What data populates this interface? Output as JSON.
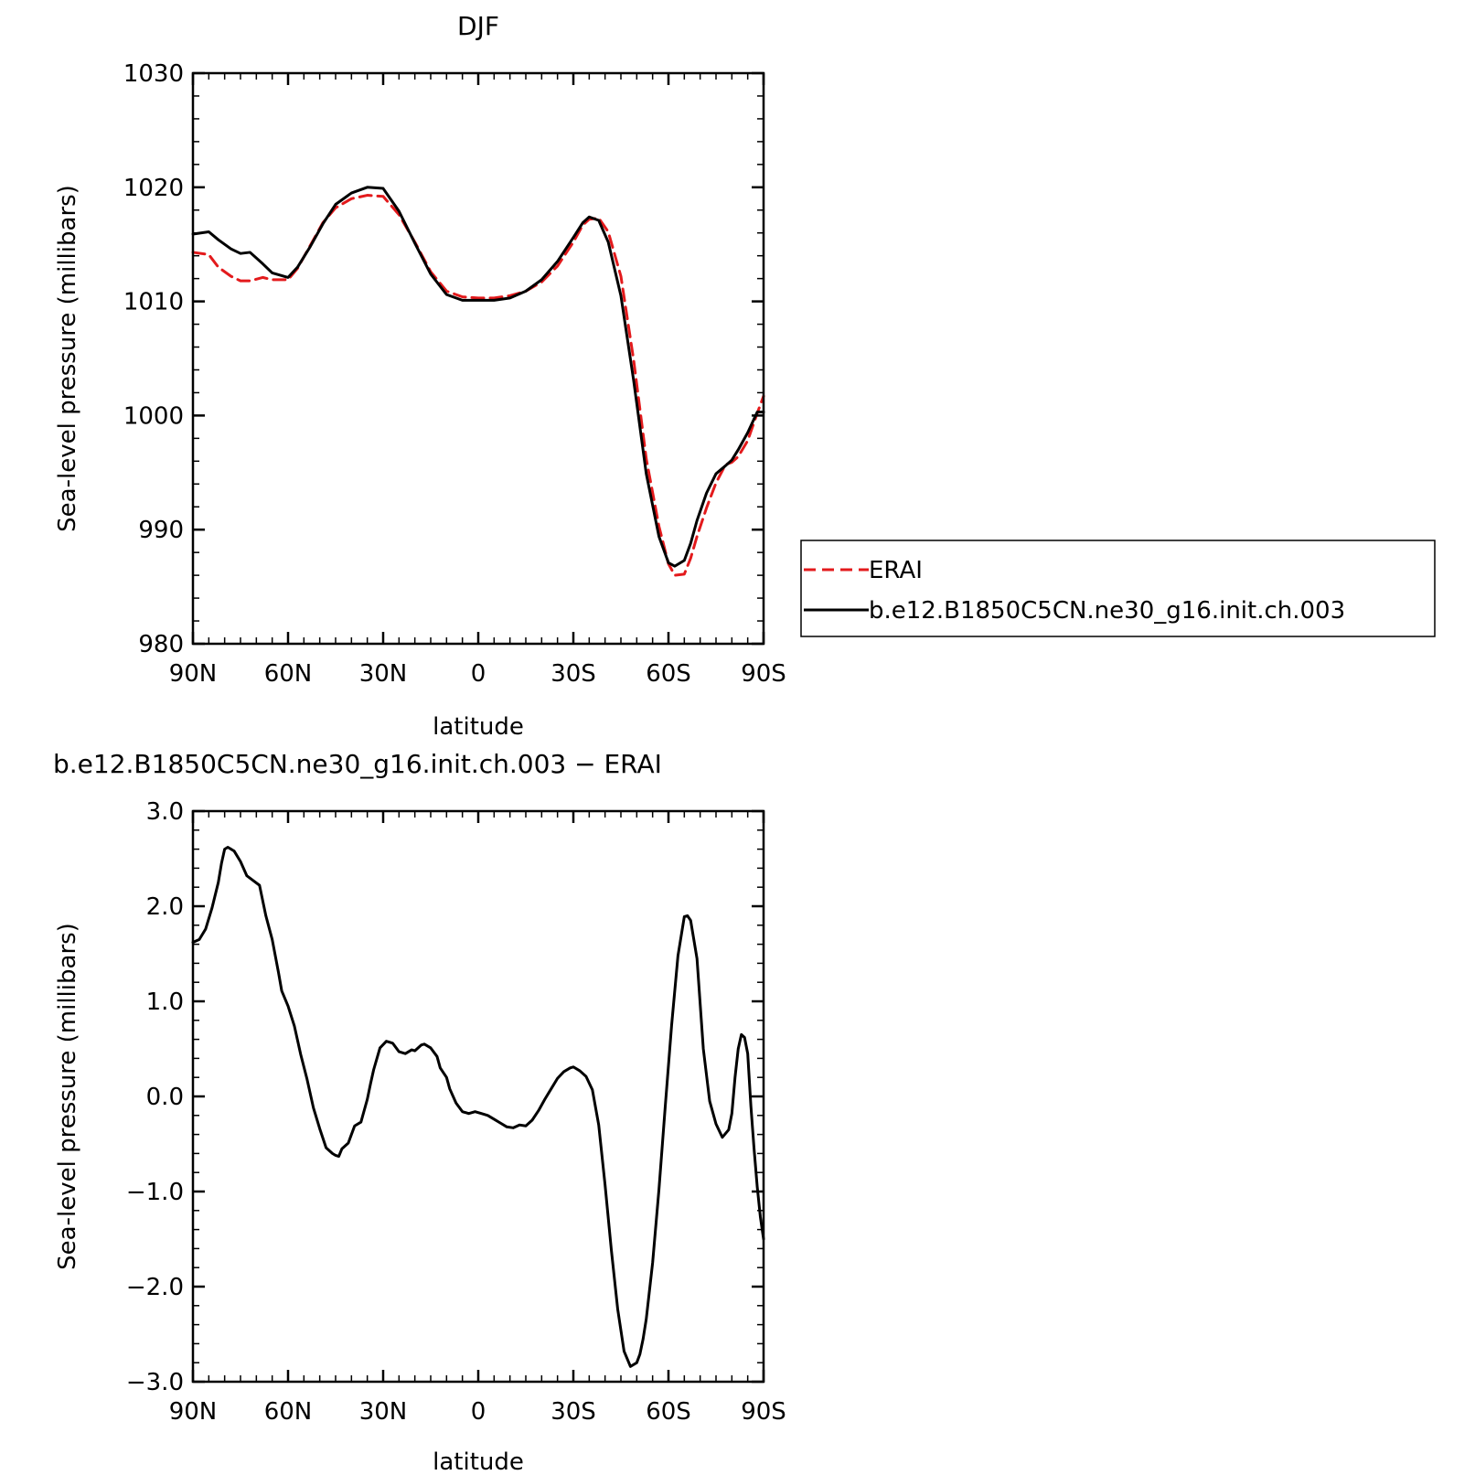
{
  "chart_data": [
    {
      "type": "line",
      "title": "DJF",
      "xlabel": "latitude",
      "ylabel": "Sea-level pressure (millibars)",
      "xlim": [
        90,
        -90
      ],
      "ylim": [
        980,
        1030
      ],
      "xticks": [
        90,
        60,
        30,
        0,
        -30,
        -60,
        -90
      ],
      "xtick_labels": [
        "90N",
        "60N",
        "30N",
        "0",
        "30S",
        "60S",
        "90S"
      ],
      "yticks": [
        980,
        990,
        1000,
        1010,
        1020,
        1030
      ],
      "ytick_labels": [
        "980",
        "990",
        "1000",
        "1010",
        "1020",
        "1030"
      ],
      "legend": "right",
      "series": [
        {
          "name": "ERAI",
          "color": "#e31a1c",
          "dash": true,
          "x": [
            90,
            85,
            82,
            78,
            75,
            72,
            68,
            65,
            60,
            57,
            53,
            49,
            45,
            40,
            35,
            30,
            25,
            20,
            15,
            10,
            5,
            0,
            -5,
            -10,
            -15,
            -20,
            -25,
            -30,
            -33,
            -35,
            -38,
            -41,
            -45,
            -49,
            -53,
            -57,
            -60,
            -62,
            -65,
            -67,
            -69,
            -72,
            -75,
            -78,
            -80,
            -82,
            -85,
            -88,
            -90
          ],
          "y": [
            1014.3,
            1014.1,
            1013.0,
            1012.2,
            1011.8,
            1011.8,
            1012.1,
            1011.9,
            1011.9,
            1012.9,
            1014.9,
            1016.9,
            1018.2,
            1019.0,
            1019.3,
            1019.2,
            1017.6,
            1015.2,
            1012.6,
            1010.9,
            1010.4,
            1010.3,
            1010.3,
            1010.5,
            1010.9,
            1011.7,
            1013.1,
            1015.2,
            1016.7,
            1017.2,
            1017.3,
            1016.1,
            1012.2,
            1004.9,
            996.2,
            990.3,
            987.0,
            986.0,
            986.1,
            987.5,
            989.4,
            991.9,
            994.1,
            995.7,
            995.9,
            996.4,
            997.8,
            1000.2,
            1001.7
          ]
        },
        {
          "name": "b.e12.B1850C5CN.ne30_g16.init.ch.003",
          "color": "#000000",
          "dash": false,
          "x": [
            90,
            85,
            82,
            78,
            75,
            72,
            68,
            65,
            60,
            57,
            53,
            49,
            45,
            40,
            35,
            30,
            25,
            20,
            15,
            10,
            5,
            0,
            -5,
            -10,
            -15,
            -20,
            -25,
            -30,
            -33,
            -35,
            -38,
            -41,
            -45,
            -49,
            -53,
            -57,
            -60,
            -62,
            -65,
            -67,
            -69,
            -72,
            -75,
            -78,
            -80,
            -82,
            -85,
            -88,
            -90
          ],
          "y": [
            1015.9,
            1016.1,
            1015.4,
            1014.6,
            1014.2,
            1014.3,
            1013.3,
            1012.5,
            1012.1,
            1013.0,
            1014.8,
            1016.8,
            1018.5,
            1019.5,
            1020.0,
            1019.9,
            1017.9,
            1015.1,
            1012.4,
            1010.6,
            1010.1,
            1010.1,
            1010.1,
            1010.3,
            1010.9,
            1011.9,
            1013.5,
            1015.6,
            1016.9,
            1017.4,
            1017.1,
            1015.2,
            1010.5,
            1003.1,
            994.9,
            989.4,
            987.1,
            986.8,
            987.3,
            988.8,
            990.8,
            993.2,
            994.9,
            995.6,
            996.1,
            997.0,
            998.5,
            1000.3,
            1000.3
          ]
        }
      ]
    },
    {
      "type": "line",
      "title": "b.e12.B1850C5CN.ne30_g16.init.ch.003 − ERAI",
      "xlabel": "latitude",
      "ylabel": "Sea-level pressure (millibars)",
      "xlim": [
        90,
        -90
      ],
      "ylim": [
        -3.0,
        3.0
      ],
      "xticks": [
        90,
        60,
        30,
        0,
        -30,
        -60,
        -90
      ],
      "xtick_labels": [
        "90N",
        "60N",
        "30N",
        "0",
        "30S",
        "60S",
        "90S"
      ],
      "yticks": [
        -3.0,
        -2.0,
        -1.0,
        0.0,
        1.0,
        2.0,
        3.0
      ],
      "ytick_labels": [
        "−3.0",
        "−2.0",
        "−1.0",
        "0.0",
        "1.0",
        "2.0",
        "3.0"
      ],
      "series": [
        {
          "color": "#000000",
          "dash": false,
          "x": [
            90,
            88,
            86,
            84,
            82,
            81,
            80,
            79,
            77,
            75,
            73,
            71,
            69,
            67,
            65,
            63,
            62,
            60,
            58,
            56,
            54,
            52,
            50,
            48,
            46,
            45,
            44,
            43,
            42,
            41,
            39,
            37,
            35,
            34,
            33,
            31,
            29,
            28,
            27,
            25,
            23,
            21,
            20,
            18,
            17,
            15,
            13,
            12,
            10,
            9,
            7,
            5,
            3,
            1,
            -1,
            -3,
            -5,
            -7,
            -9,
            -11,
            -13,
            -15,
            -17,
            -19,
            -21,
            -23,
            -25,
            -27,
            -29,
            -30,
            -32,
            -34,
            -36,
            -38,
            -40,
            -42,
            -44,
            -46,
            -48,
            -50,
            -51,
            -52,
            -53,
            -55,
            -57,
            -59,
            -61,
            -63,
            -65,
            -66,
            -67,
            -68,
            -69,
            -71,
            -73,
            -75,
            -77,
            -79,
            -80,
            -81,
            -82,
            -83,
            -84,
            -85,
            -86,
            -87,
            -88,
            -89,
            -90
          ],
          "y": [
            1.62,
            1.65,
            1.76,
            1.98,
            2.25,
            2.45,
            2.6,
            2.62,
            2.58,
            2.47,
            2.32,
            2.27,
            2.22,
            1.9,
            1.65,
            1.3,
            1.11,
            0.95,
            0.74,
            0.44,
            0.18,
            -0.12,
            -0.34,
            -0.54,
            -0.6,
            -0.62,
            -0.63,
            -0.55,
            -0.52,
            -0.49,
            -0.31,
            -0.27,
            -0.03,
            0.13,
            0.28,
            0.51,
            0.58,
            0.57,
            0.56,
            0.47,
            0.45,
            0.49,
            0.48,
            0.54,
            0.55,
            0.51,
            0.42,
            0.3,
            0.2,
            0.08,
            -0.07,
            -0.16,
            -0.18,
            -0.16,
            -0.18,
            -0.2,
            -0.24,
            -0.28,
            -0.32,
            -0.33,
            -0.3,
            -0.31,
            -0.25,
            -0.15,
            -0.03,
            0.08,
            0.19,
            0.26,
            0.3,
            0.31,
            0.27,
            0.21,
            0.07,
            -0.3,
            -0.93,
            -1.62,
            -2.24,
            -2.68,
            -2.84,
            -2.8,
            -2.71,
            -2.55,
            -2.34,
            -1.75,
            -0.98,
            -0.1,
            0.75,
            1.48,
            1.89,
            1.9,
            1.85,
            1.65,
            1.45,
            0.5,
            -0.05,
            -0.29,
            -0.43,
            -0.35,
            -0.18,
            0.2,
            0.5,
            0.65,
            0.62,
            0.45,
            -0.1,
            -0.55,
            -0.95,
            -1.27,
            -1.5
          ]
        }
      ]
    }
  ]
}
